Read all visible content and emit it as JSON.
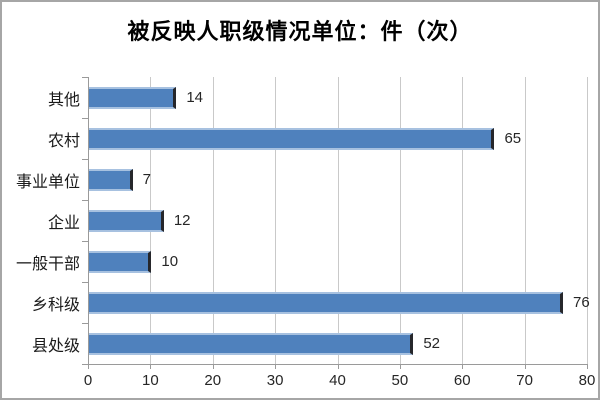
{
  "title": "被反映人职级情况单位：件（次）",
  "colors": {
    "bar_fill": "#4f81bd",
    "bar_edge_light": "#a7c1e0",
    "bar_end_cap": "#26272b",
    "gridline": "#c9c9c9",
    "axis": "#9a9a9a",
    "frame_border": "#a6a6a6",
    "text": "#262626",
    "title_text": "#000000"
  },
  "chart_data": {
    "type": "bar",
    "orientation": "horizontal",
    "title": "被反映人职级情况单位：件（次）",
    "categories": [
      "其他",
      "农村",
      "事业单位",
      "企业",
      "一般干部",
      "乡科级",
      "县处级"
    ],
    "values": [
      14,
      65,
      7,
      12,
      10,
      76,
      52
    ],
    "xlabel": "",
    "ylabel": "",
    "xlim": [
      0,
      80
    ],
    "xticks": [
      0,
      10,
      20,
      30,
      40,
      50,
      60,
      70,
      80
    ],
    "grid": true,
    "data_labels": true,
    "legend": "none",
    "categories_order": "top-to-bottom"
  }
}
